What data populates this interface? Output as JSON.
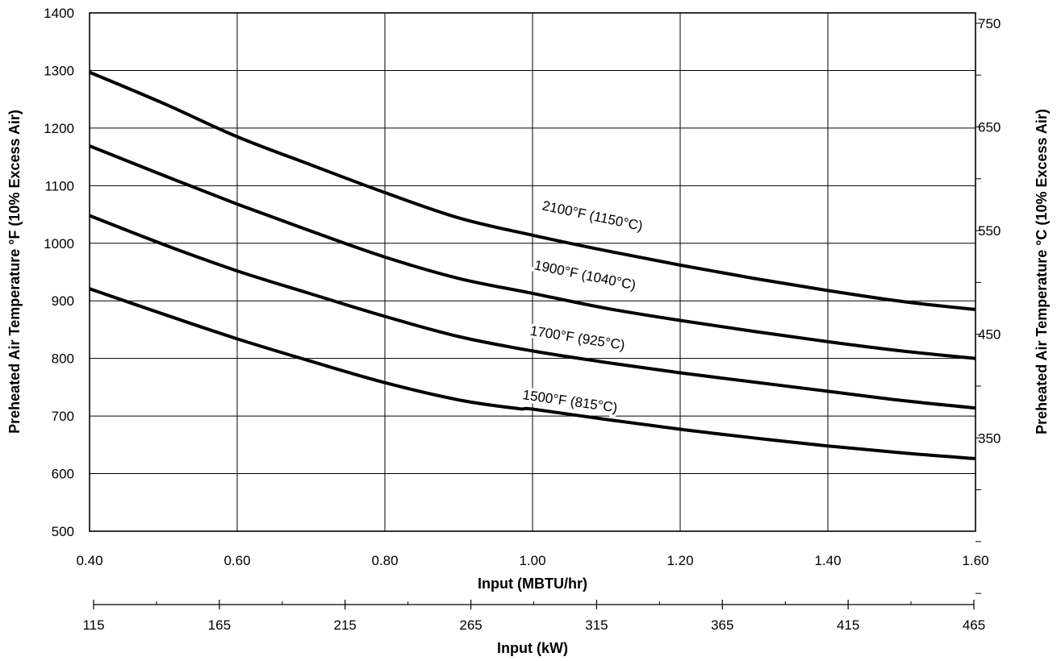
{
  "chart_data": {
    "type": "line",
    "x_axis": {
      "label": "Input (MBTU/hr)",
      "lim": [
        0.4,
        1.6
      ],
      "ticks": [
        0.4,
        0.6,
        0.8,
        1.0,
        1.2,
        1.4,
        1.6
      ],
      "tick_labels": [
        "0.40",
        "0.60",
        "0.80",
        "1.00",
        "1.20",
        "1.40",
        "1.60"
      ]
    },
    "secondary_x_axis": {
      "label": "Input (kW)",
      "lim": [
        115,
        465
      ],
      "ticks": [
        115,
        165,
        215,
        265,
        315,
        365,
        415,
        465
      ],
      "tick_labels": [
        "115",
        "165",
        "215",
        "265",
        "315",
        "365",
        "415",
        "465"
      ],
      "minor_ticks": [
        140,
        190,
        240,
        290,
        340,
        390,
        440
      ]
    },
    "y_axis": {
      "label": "Preheated Air Temperature °F (10% Excess Air)",
      "lim": [
        500,
        1400
      ],
      "ticks": [
        500,
        600,
        700,
        800,
        900,
        1000,
        1100,
        1200,
        1300,
        1400
      ],
      "tick_labels": [
        "500",
        "600",
        "700",
        "800",
        "900",
        "1000",
        "1100",
        "1200",
        "1300",
        "1400"
      ]
    },
    "secondary_y_axis": {
      "label": "Preheated Air Temperature °C (10% Excess Air)",
      "tick_values_f": [
        392,
        482,
        572,
        662,
        752,
        842,
        932,
        1022,
        1112,
        1202,
        1292,
        1382
      ],
      "labeled": [
        {
          "value_f": 662,
          "label": "350"
        },
        {
          "value_f": 842,
          "label": "450"
        },
        {
          "value_f": 1022,
          "label": "550"
        },
        {
          "value_f": 1202,
          "label": "650"
        },
        {
          "value_f": 1382,
          "label": "750"
        }
      ]
    },
    "grid": true,
    "series": [
      {
        "name": "2100°F (1150°C)",
        "x": [
          0.4,
          0.5,
          0.6,
          0.7,
          0.8,
          0.9,
          1.0,
          1.1,
          1.2,
          1.3,
          1.4,
          1.5,
          1.6
        ],
        "y": [
          1297,
          1243,
          1185,
          1136,
          1088,
          1044,
          1014,
          987,
          962,
          939,
          918,
          899,
          885
        ]
      },
      {
        "name": "1900°F (1040°C)",
        "x": [
          0.4,
          0.5,
          0.6,
          0.7,
          0.8,
          0.9,
          1.0,
          1.1,
          1.2,
          1.3,
          1.4,
          1.5,
          1.6
        ],
        "y": [
          1169,
          1118,
          1068,
          1021,
          976,
          939,
          913,
          887,
          866,
          847,
          829,
          813,
          800
        ]
      },
      {
        "name": "1700°F (925°C)",
        "x": [
          0.4,
          0.5,
          0.6,
          0.7,
          0.8,
          0.9,
          1.0,
          1.1,
          1.2,
          1.3,
          1.4,
          1.5,
          1.6
        ],
        "y": [
          1048,
          998,
          952,
          912,
          873,
          838,
          813,
          793,
          775,
          759,
          743,
          727,
          714
        ]
      },
      {
        "name": "1500°F (815°C)",
        "x": [
          0.4,
          0.5,
          0.6,
          0.7,
          0.8,
          0.9,
          0.98,
          1.0,
          1.1,
          1.2,
          1.3,
          1.4,
          1.5,
          1.6
        ],
        "y": [
          921,
          877,
          834,
          795,
          758,
          728,
          713,
          712,
          694,
          677,
          662,
          648,
          636,
          626
        ]
      }
    ],
    "annotations": [
      {
        "text": "2100°F (1150°C)",
        "series": 0,
        "x": 1.08,
        "y": 1040
      },
      {
        "text": "1900°F (1040°C)",
        "series": 1,
        "x": 1.07,
        "y": 937
      },
      {
        "text": "1700°F (925°C)",
        "series": 2,
        "x": 1.06,
        "y": 828
      },
      {
        "text": "1500°F (815°C)",
        "series": 3,
        "x": 1.05,
        "y": 718
      }
    ]
  }
}
